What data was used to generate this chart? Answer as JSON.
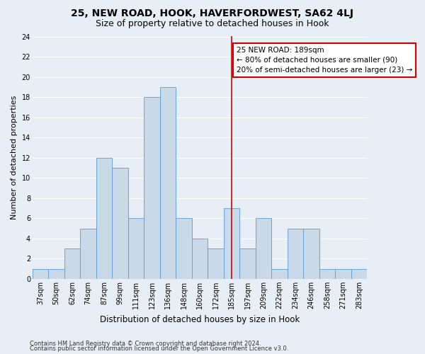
{
  "title1": "25, NEW ROAD, HOOK, HAVERFORDWEST, SA62 4LJ",
  "title2": "Size of property relative to detached houses in Hook",
  "xlabel": "Distribution of detached houses by size in Hook",
  "ylabel": "Number of detached properties",
  "categories": [
    "37sqm",
    "50sqm",
    "62sqm",
    "74sqm",
    "87sqm",
    "99sqm",
    "111sqm",
    "123sqm",
    "136sqm",
    "148sqm",
    "160sqm",
    "172sqm",
    "185sqm",
    "197sqm",
    "209sqm",
    "222sqm",
    "234sqm",
    "246sqm",
    "258sqm",
    "271sqm",
    "283sqm"
  ],
  "values": [
    1,
    1,
    3,
    5,
    12,
    11,
    6,
    18,
    19,
    6,
    4,
    3,
    7,
    3,
    6,
    1,
    5,
    5,
    1,
    1,
    1
  ],
  "bar_color": "#c9d9e8",
  "bar_edge_color": "#5b9bd5",
  "ylim": [
    0,
    24
  ],
  "yticks": [
    0,
    2,
    4,
    6,
    8,
    10,
    12,
    14,
    16,
    18,
    20,
    22,
    24
  ],
  "bg_color": "#e8eef5",
  "grid_color": "#ffffff",
  "vline_x_idx": 12,
  "annotation_title": "25 NEW ROAD: 189sqm",
  "annotation_line1": "← 80% of detached houses are smaller (90)",
  "annotation_line2": "20% of semi-detached houses are larger (23) →",
  "annotation_box_color": "#ffffff",
  "annotation_border_color": "#cc0000",
  "vline_color": "#cc0000",
  "footer1": "Contains HM Land Registry data © Crown copyright and database right 2024.",
  "footer2": "Contains public sector information licensed under the Open Government Licence v3.0.",
  "title1_fontsize": 10,
  "title2_fontsize": 9,
  "xlabel_fontsize": 8.5,
  "ylabel_fontsize": 8,
  "tick_fontsize": 7,
  "annotation_fontsize": 7.5,
  "footer_fontsize": 6
}
